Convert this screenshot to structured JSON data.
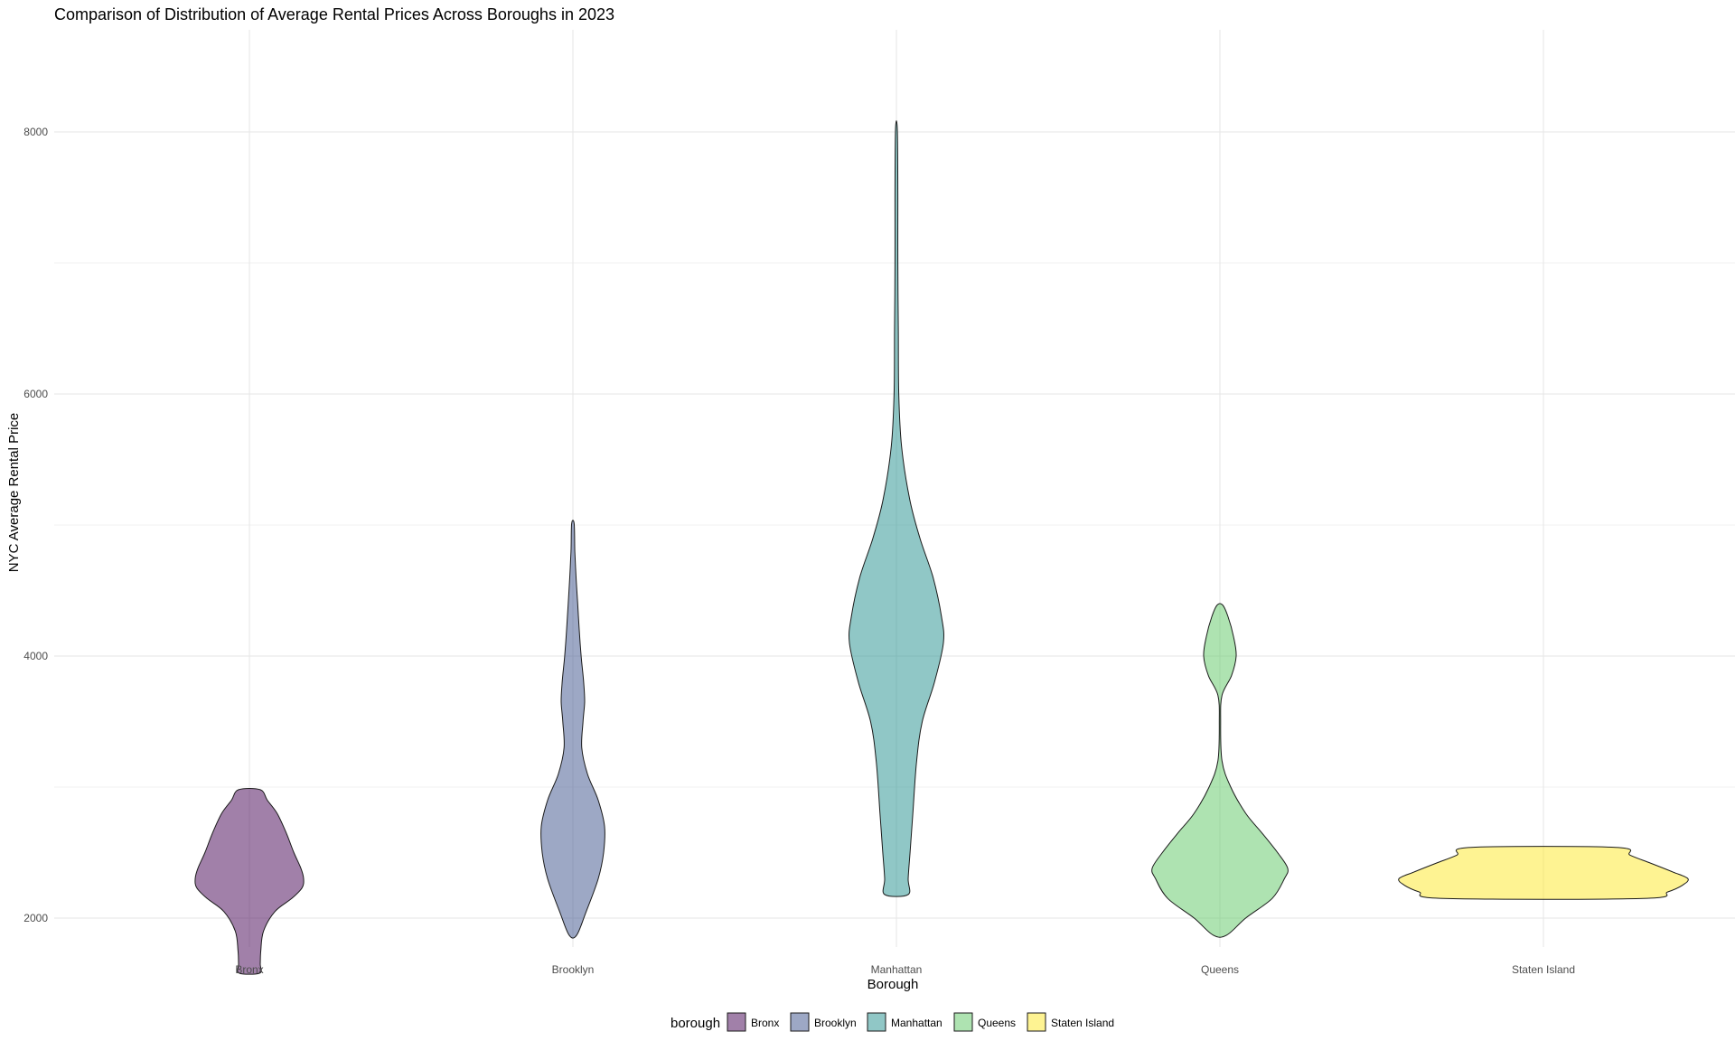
{
  "chart_data": {
    "type": "violin",
    "title": "Comparison of Distribution of Average Rental Prices Across Boroughs in 2023",
    "xlabel": "Borough",
    "ylabel": "NYC Average Rental Price",
    "ylim": [
      1300,
      8350
    ],
    "y_ticks": [
      2000,
      4000,
      6000,
      8000
    ],
    "grid": true,
    "legend": {
      "title": "borough",
      "placement": "bottom"
    },
    "categories": [
      "Bronx",
      "Brooklyn",
      "Manhattan",
      "Queens",
      "Staten Island"
    ],
    "series": [
      {
        "name": "Bronx",
        "color": "#440154",
        "min": 1580,
        "max": 2980,
        "density_width": [
          [
            1580,
            0.19
          ],
          [
            1650,
            0.2
          ],
          [
            1750,
            0.21
          ],
          [
            1900,
            0.26
          ],
          [
            2050,
            0.47
          ],
          [
            2150,
            0.78
          ],
          [
            2230,
            0.97
          ],
          [
            2300,
            1.0
          ],
          [
            2380,
            0.95
          ],
          [
            2500,
            0.82
          ],
          [
            2650,
            0.68
          ],
          [
            2800,
            0.51
          ],
          [
            2900,
            0.33
          ],
          [
            2980,
            0.2
          ]
        ]
      },
      {
        "name": "Brooklyn",
        "color": "#3b528b",
        "min": 1870,
        "max": 5010,
        "density_width": [
          [
            1870,
            0.12
          ],
          [
            2050,
            0.42
          ],
          [
            2300,
            0.8
          ],
          [
            2500,
            0.97
          ],
          [
            2700,
            1.0
          ],
          [
            2900,
            0.8
          ],
          [
            3100,
            0.46
          ],
          [
            3300,
            0.28
          ],
          [
            3500,
            0.32
          ],
          [
            3650,
            0.37
          ],
          [
            3800,
            0.34
          ],
          [
            4000,
            0.26
          ],
          [
            4200,
            0.2
          ],
          [
            4400,
            0.15
          ],
          [
            4600,
            0.1
          ],
          [
            4800,
            0.06
          ],
          [
            5010,
            0.04
          ]
        ]
      },
      {
        "name": "Manhattan",
        "color": "#21908d",
        "min": 2180,
        "max": 8020,
        "density_width": [
          [
            2180,
            0.25
          ],
          [
            2300,
            0.25
          ],
          [
            2500,
            0.29
          ],
          [
            2800,
            0.35
          ],
          [
            3200,
            0.43
          ],
          [
            3500,
            0.55
          ],
          [
            3800,
            0.81
          ],
          [
            4100,
            1.0
          ],
          [
            4300,
            0.96
          ],
          [
            4600,
            0.78
          ],
          [
            4900,
            0.5
          ],
          [
            5200,
            0.28
          ],
          [
            5600,
            0.11
          ],
          [
            6000,
            0.05
          ],
          [
            6500,
            0.04
          ],
          [
            7000,
            0.03
          ],
          [
            7500,
            0.03
          ],
          [
            8020,
            0.02
          ]
        ]
      },
      {
        "name": "Queens",
        "color": "#5dc863",
        "min": 1870,
        "max": 4390,
        "density_width": [
          [
            1870,
            0.1
          ],
          [
            2000,
            0.38
          ],
          [
            2150,
            0.77
          ],
          [
            2300,
            0.95
          ],
          [
            2380,
            1.0
          ],
          [
            2500,
            0.85
          ],
          [
            2650,
            0.62
          ],
          [
            2800,
            0.38
          ],
          [
            3000,
            0.16
          ],
          [
            3200,
            0.03
          ],
          [
            3500,
            0.01
          ],
          [
            3700,
            0.03
          ],
          [
            3850,
            0.17
          ],
          [
            4000,
            0.24
          ],
          [
            4150,
            0.2
          ],
          [
            4300,
            0.12
          ],
          [
            4390,
            0.04
          ]
        ]
      },
      {
        "name": "Staten Island",
        "color": "#fde725",
        "min": 2150,
        "max": 2540,
        "density_width": [
          [
            2150,
            0.69
          ],
          [
            2200,
            0.86
          ],
          [
            2250,
            0.96
          ],
          [
            2300,
            1.0
          ],
          [
            2350,
            0.9
          ],
          [
            2420,
            0.74
          ],
          [
            2480,
            0.6
          ],
          [
            2540,
            0.5
          ]
        ]
      }
    ]
  }
}
